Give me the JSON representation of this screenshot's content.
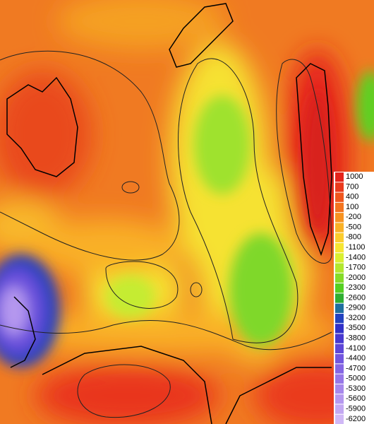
{
  "legend": {
    "values": [
      1000,
      700,
      400,
      100,
      -200,
      -500,
      -800,
      -1100,
      -1400,
      -1700,
      -2000,
      -2300,
      -2600,
      -2900,
      -3200,
      -3500,
      -3800,
      -4100,
      -4400,
      -4700,
      -5000,
      -5300,
      -5600,
      -5900,
      -6200
    ],
    "colors": [
      "#e5231b",
      "#ea3a1d",
      "#ef561e",
      "#f37420",
      "#f79322",
      "#f9b127",
      "#fbcc2e",
      "#f6e533",
      "#d9ef31",
      "#b2e72f",
      "#85db29",
      "#55cf22",
      "#2fae32",
      "#1f6f9f",
      "#2342c0",
      "#3131c8",
      "#4839d0",
      "#5e47d8",
      "#7256df",
      "#8566e4",
      "#9777e8",
      "#a788ec",
      "#b598ef",
      "#c3a8f2",
      "#d0b8f6"
    ]
  }
}
